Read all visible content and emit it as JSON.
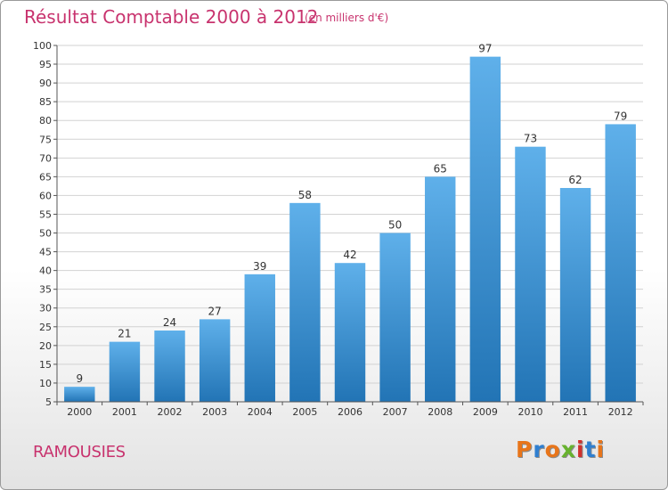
{
  "chart_data": {
    "type": "bar",
    "title": "Résultat Comptable 2000 à 2012",
    "subtitle": "(en milliers d'€)",
    "categories": [
      "2000",
      "2001",
      "2002",
      "2003",
      "2004",
      "2005",
      "2006",
      "2007",
      "2008",
      "2009",
      "2010",
      "2011",
      "2012"
    ],
    "values": [
      9,
      21,
      24,
      27,
      39,
      58,
      42,
      50,
      65,
      97,
      73,
      62,
      79
    ],
    "ylim": [
      5,
      100
    ],
    "yticks": [
      5,
      10,
      15,
      20,
      25,
      30,
      35,
      40,
      45,
      50,
      55,
      60,
      65,
      70,
      75,
      80,
      85,
      90,
      95,
      100
    ],
    "xlabel": "",
    "ylabel": "",
    "grid": true,
    "colors": {
      "bar_top": "#5fb0ea",
      "bar_bottom": "#2274b5",
      "title": "#c8336e"
    }
  },
  "footer": {
    "commune": "RAMOUSIES",
    "logo_letters": [
      {
        "ch": "P",
        "color": "#e8751a"
      },
      {
        "ch": "r",
        "color": "#2f7fd0"
      },
      {
        "ch": "o",
        "color": "#e8751a"
      },
      {
        "ch": "x",
        "color": "#67b22e"
      },
      {
        "ch": "i",
        "color": "#d0312d"
      },
      {
        "ch": "t",
        "color": "#2f7fd0"
      },
      {
        "ch": "i",
        "color": "#e8751a"
      }
    ]
  }
}
